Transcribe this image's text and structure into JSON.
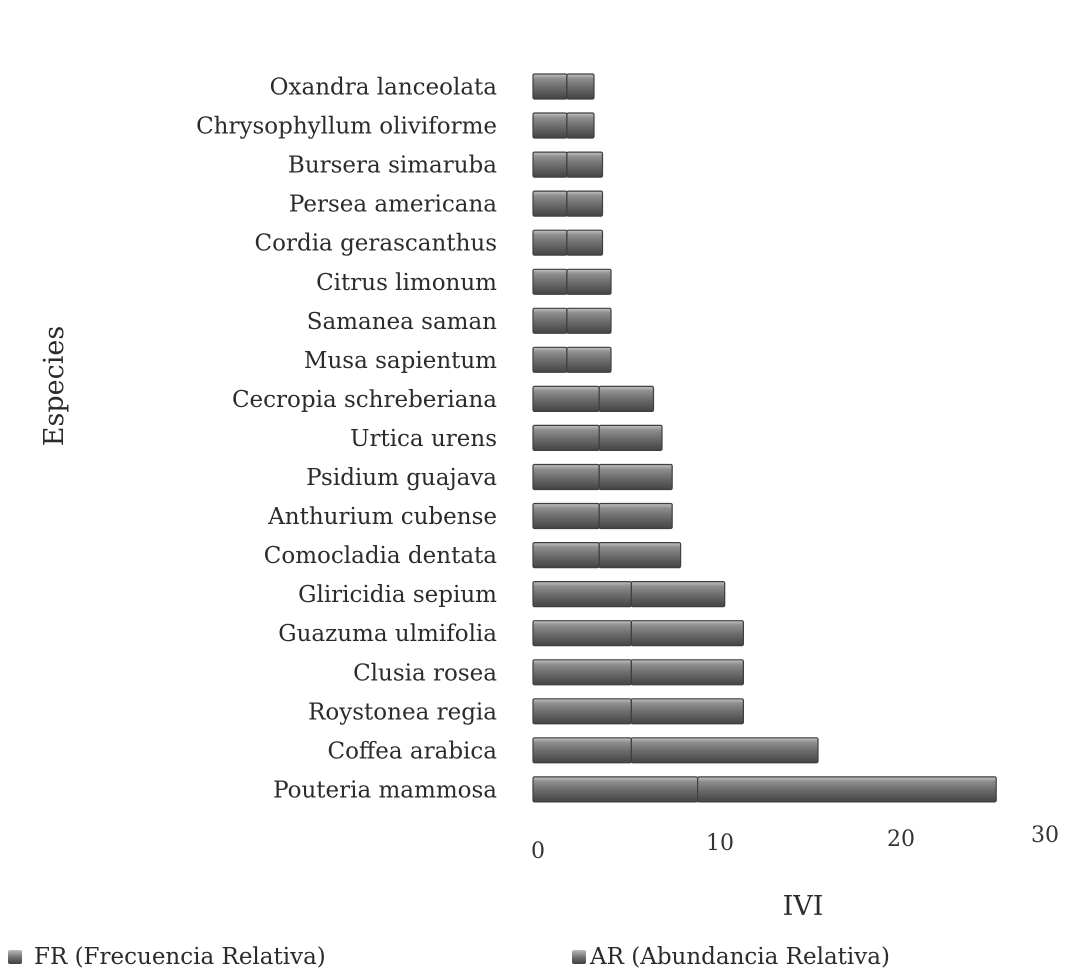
{
  "chart_data": {
    "type": "bar",
    "orientation": "horizontal",
    "stacked": true,
    "categories": [
      "Oxandra lanceolata",
      "Chrysophyllum oliviforme",
      "Bursera simaruba",
      "Persea americana",
      "Cordia gerascanthus",
      "Citrus limonum",
      "Samanea saman",
      "Musa sapientum",
      "Cecropia schreberiana",
      "Urtica urens",
      "Psidium guajava",
      "Anthurium cubense",
      "Comocladia dentata",
      "Gliricidia sepium",
      "Guazuma ulmifolia",
      "Clusia rosea",
      "Roystonea regia",
      "Coffea arabica",
      "Pouteria mammosa"
    ],
    "series": [
      {
        "name": "FR (Frecuencia Relativa)",
        "values": [
          2.0,
          2.0,
          2.0,
          2.0,
          2.0,
          2.0,
          2.0,
          2.0,
          3.9,
          3.9,
          3.9,
          3.9,
          3.9,
          5.8,
          5.8,
          5.8,
          5.8,
          5.8,
          9.7
        ]
      },
      {
        "name": "AR (Abundancia Relativa)",
        "values": [
          1.6,
          1.6,
          2.1,
          2.1,
          2.1,
          2.6,
          2.6,
          2.6,
          3.2,
          3.7,
          4.3,
          4.3,
          4.8,
          5.5,
          6.6,
          6.6,
          6.6,
          11.0,
          17.6
        ]
      }
    ],
    "xlabel": "IVI",
    "ylabel": "Especies",
    "x_ticks": [
      "0",
      "10",
      "20",
      "30"
    ],
    "xlim": [
      0,
      30
    ],
    "grid": false,
    "legend_position": "bottom",
    "colors": {
      "bar": "#6e6e6e",
      "bar_highlight": "#bdbdbd",
      "bar_shadow": "#3f3f3f",
      "text": "#2b2b2b"
    }
  }
}
